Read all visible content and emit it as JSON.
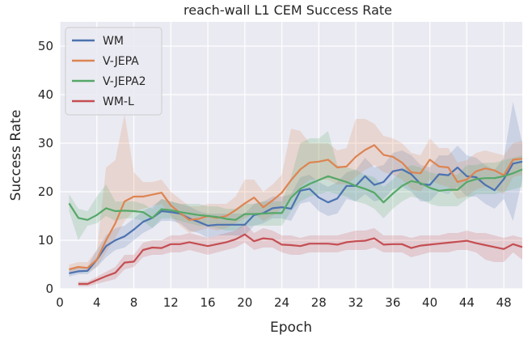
{
  "chart_data": {
    "type": "line",
    "title": "reach-wall L1 CEM Success Rate",
    "xlabel": "Epoch",
    "ylabel": "Success Rate",
    "xlim": [
      0,
      50
    ],
    "ylim": [
      0,
      55
    ],
    "xticks": [
      0,
      4,
      8,
      12,
      16,
      20,
      24,
      28,
      32,
      36,
      40,
      44,
      48
    ],
    "yticks": [
      0,
      10,
      20,
      30,
      40,
      50
    ],
    "grid": true,
    "background": "#eaeaf2",
    "legend_position": "upper-left",
    "series": [
      {
        "name": "WM",
        "color": "#4c72b0",
        "x": [
          1,
          2,
          3,
          4,
          5,
          6,
          7,
          8,
          9,
          10,
          11,
          12,
          13,
          14,
          15,
          16,
          17,
          18,
          19,
          20,
          21,
          22,
          23,
          24,
          25,
          26,
          27,
          28,
          29,
          30,
          31,
          32,
          33,
          34,
          35,
          36,
          37,
          38,
          39,
          40,
          41,
          42,
          43,
          44,
          45,
          46,
          47,
          48,
          49,
          50
        ],
        "values": [
          3.2,
          3.6,
          3.7,
          6.0,
          8.8,
          10.0,
          10.8,
          12.2,
          13.8,
          14.6,
          16.0,
          15.8,
          15.5,
          14.5,
          13.8,
          13.0,
          13.2,
          13.2,
          13.2,
          13.2,
          15.2,
          15.6,
          16.6,
          16.8,
          16.5,
          20.2,
          20.6,
          18.8,
          17.8,
          18.6,
          21.2,
          21.2,
          23.2,
          21.4,
          22.0,
          24.2,
          24.6,
          23.6,
          21.6,
          21.4,
          23.6,
          23.4,
          25.0,
          23.2,
          23.0,
          21.4,
          20.3,
          22.6,
          25.8,
          26.2
        ],
        "band_low": [
          2.5,
          3.0,
          3.0,
          4.5,
          6.5,
          8.0,
          8.5,
          10.0,
          11.5,
          12.5,
          14.0,
          14.0,
          13.5,
          12.0,
          11.5,
          10.5,
          11.0,
          11.0,
          11.0,
          11.0,
          13.0,
          13.5,
          14.5,
          14.5,
          14.0,
          17.5,
          18.0,
          16.0,
          15.0,
          15.5,
          18.5,
          18.0,
          19.5,
          18.0,
          18.5,
          20.5,
          21.0,
          20.0,
          18.0,
          18.0,
          20.0,
          19.5,
          21.0,
          19.0,
          19.0,
          17.5,
          16.5,
          18.5,
          14.0,
          22.5
        ],
        "band_high": [
          4.0,
          4.5,
          4.5,
          8.0,
          11.0,
          12.5,
          13.0,
          14.5,
          16.0,
          17.0,
          18.5,
          18.0,
          17.5,
          17.0,
          16.0,
          15.5,
          15.5,
          15.5,
          15.5,
          15.5,
          17.5,
          18.0,
          19.0,
          19.0,
          19.5,
          23.0,
          23.5,
          22.0,
          21.0,
          22.0,
          24.0,
          24.5,
          27.0,
          25.0,
          25.5,
          28.0,
          28.5,
          27.5,
          25.5,
          25.0,
          27.5,
          27.5,
          29.5,
          27.5,
          27.0,
          25.5,
          24.5,
          27.0,
          38.5,
          30.0
        ]
      },
      {
        "name": "V-JEPA",
        "color": "#dd8452",
        "x": [
          1,
          2,
          3,
          4,
          5,
          6,
          7,
          8,
          9,
          10,
          11,
          12,
          13,
          14,
          15,
          16,
          17,
          18,
          19,
          20,
          21,
          22,
          23,
          24,
          25,
          26,
          27,
          28,
          29,
          30,
          31,
          32,
          33,
          34,
          35,
          36,
          37,
          38,
          39,
          40,
          41,
          42,
          43,
          44,
          45,
          46,
          47,
          48,
          49,
          50
        ],
        "values": [
          4.0,
          4.5,
          4.3,
          6.0,
          10.0,
          13.5,
          18.0,
          19.0,
          19.0,
          19.4,
          19.8,
          17.2,
          15.6,
          14.2,
          14.4,
          15.0,
          14.6,
          15.0,
          16.2,
          17.6,
          18.8,
          16.8,
          18.2,
          19.8,
          22.4,
          24.6,
          26.0,
          26.2,
          26.6,
          25.0,
          25.2,
          27.2,
          28.6,
          29.6,
          27.6,
          27.2,
          26.0,
          24.0,
          23.8,
          26.6,
          25.2,
          25.0,
          22.0,
          22.5,
          24.2,
          24.8,
          24.4,
          23.4,
          26.6,
          26.8
        ],
        "band_low": [
          3.0,
          3.5,
          3.5,
          4.5,
          7.5,
          10.5,
          14.0,
          16.0,
          16.5,
          17.0,
          17.5,
          15.0,
          13.0,
          11.5,
          12.0,
          12.5,
          12.0,
          12.5,
          13.5,
          14.5,
          15.5,
          14.0,
          15.0,
          16.5,
          19.0,
          21.0,
          22.5,
          22.5,
          22.5,
          21.5,
          21.5,
          23.0,
          24.5,
          25.5,
          24.0,
          23.5,
          22.5,
          20.5,
          20.0,
          22.5,
          21.5,
          21.0,
          18.5,
          19.0,
          20.5,
          21.0,
          20.5,
          19.5,
          23.0,
          23.5
        ],
        "band_high": [
          5.0,
          5.5,
          5.5,
          8.0,
          25.0,
          26.5,
          36.0,
          24.0,
          22.0,
          22.0,
          22.5,
          20.0,
          18.5,
          17.0,
          17.0,
          17.5,
          17.5,
          17.5,
          19.0,
          22.5,
          22.5,
          20.0,
          21.5,
          23.5,
          33.0,
          32.5,
          30.0,
          30.0,
          30.0,
          28.5,
          29.0,
          35.0,
          35.0,
          34.0,
          31.5,
          31.0,
          30.0,
          28.0,
          27.5,
          31.0,
          29.0,
          29.0,
          26.0,
          26.5,
          28.0,
          28.5,
          28.0,
          27.5,
          30.0,
          30.5
        ]
      },
      {
        "name": "V-JEPA2",
        "color": "#55a868",
        "x": [
          1,
          2,
          3,
          4,
          5,
          6,
          7,
          8,
          9,
          10,
          11,
          12,
          13,
          14,
          15,
          16,
          17,
          18,
          19,
          20,
          21,
          22,
          23,
          24,
          25,
          26,
          27,
          28,
          29,
          30,
          31,
          32,
          33,
          34,
          35,
          36,
          37,
          38,
          39,
          40,
          41,
          42,
          43,
          44,
          45,
          46,
          47,
          48,
          49,
          50
        ],
        "values": [
          17.6,
          14.6,
          14.2,
          15.2,
          16.6,
          16.0,
          16.1,
          16.0,
          15.8,
          14.6,
          16.4,
          16.2,
          15.8,
          15.5,
          15.2,
          15.0,
          14.8,
          14.4,
          14.2,
          15.4,
          15.4,
          15.5,
          15.6,
          15.6,
          18.8,
          20.6,
          21.6,
          22.4,
          23.2,
          22.6,
          22.0,
          21.2,
          20.6,
          19.8,
          17.8,
          19.6,
          21.2,
          22.2,
          21.8,
          20.8,
          20.2,
          20.4,
          20.4,
          22.0,
          22.6,
          22.8,
          22.8,
          23.2,
          23.8,
          24.6
        ],
        "band_low": [
          16.0,
          10.0,
          13.0,
          13.5,
          15.0,
          14.0,
          14.5,
          14.5,
          14.0,
          12.5,
          14.5,
          14.5,
          14.0,
          13.5,
          13.0,
          13.0,
          12.5,
          12.0,
          12.0,
          13.0,
          13.0,
          13.0,
          13.0,
          13.0,
          16.0,
          18.0,
          19.0,
          19.5,
          20.0,
          19.5,
          19.0,
          18.0,
          17.5,
          16.5,
          14.5,
          16.5,
          18.0,
          19.0,
          18.5,
          17.5,
          17.0,
          17.0,
          17.0,
          18.5,
          19.5,
          19.5,
          19.5,
          20.0,
          20.5,
          21.0
        ],
        "band_high": [
          19.5,
          16.5,
          16.0,
          19.0,
          21.5,
          18.0,
          18.0,
          18.0,
          17.5,
          16.5,
          18.5,
          18.0,
          17.5,
          17.5,
          17.5,
          17.0,
          17.0,
          16.5,
          16.5,
          17.5,
          17.5,
          18.0,
          18.0,
          18.0,
          23.0,
          30.0,
          31.0,
          31.0,
          32.5,
          25.5,
          25.0,
          24.5,
          23.5,
          23.0,
          21.0,
          22.5,
          24.5,
          25.5,
          25.0,
          24.0,
          23.5,
          23.5,
          23.5,
          25.5,
          25.5,
          26.0,
          26.0,
          26.5,
          27.0,
          27.5
        ]
      },
      {
        "name": "WM-L",
        "color": "#c44e52",
        "x": [
          2,
          3,
          4,
          5,
          6,
          7,
          8,
          9,
          10,
          11,
          12,
          13,
          14,
          15,
          16,
          17,
          18,
          19,
          20,
          21,
          22,
          23,
          24,
          25,
          26,
          27,
          28,
          29,
          30,
          31,
          32,
          33,
          34,
          35,
          36,
          37,
          38,
          39,
          40,
          41,
          42,
          43,
          44,
          45,
          46,
          47,
          48,
          49,
          50
        ],
        "values": [
          1.0,
          1.0,
          1.8,
          2.6,
          3.3,
          5.4,
          5.6,
          8.0,
          8.5,
          8.4,
          9.2,
          9.2,
          9.6,
          9.2,
          8.8,
          9.2,
          9.6,
          10.2,
          11.2,
          9.8,
          10.4,
          10.2,
          9.1,
          9.0,
          8.8,
          9.3,
          9.3,
          9.3,
          9.1,
          9.6,
          9.8,
          9.9,
          10.4,
          9.1,
          9.2,
          9.2,
          8.4,
          8.9,
          9.1,
          9.3,
          9.5,
          9.7,
          9.9,
          9.4,
          9.0,
          8.6,
          8.2,
          9.2,
          8.6
        ],
        "band_low": [
          0.5,
          0.5,
          1.0,
          1.5,
          2.0,
          4.0,
          4.5,
          6.5,
          7.0,
          7.0,
          7.5,
          7.5,
          8.0,
          7.5,
          7.0,
          7.5,
          8.0,
          8.5,
          9.5,
          8.0,
          8.5,
          8.5,
          7.5,
          7.0,
          7.0,
          7.5,
          7.5,
          7.5,
          7.5,
          8.0,
          8.0,
          8.0,
          8.5,
          7.5,
          7.5,
          7.5,
          6.5,
          7.0,
          7.5,
          7.5,
          7.5,
          8.0,
          8.0,
          7.5,
          6.0,
          5.5,
          5.5,
          7.5,
          6.0
        ],
        "band_high": [
          1.5,
          1.5,
          2.5,
          3.5,
          4.5,
          7.0,
          7.0,
          9.5,
          10.0,
          10.0,
          11.0,
          11.0,
          11.5,
          11.0,
          10.5,
          11.0,
          11.5,
          12.0,
          13.5,
          11.5,
          12.5,
          12.0,
          11.0,
          11.0,
          10.5,
          11.0,
          11.0,
          11.0,
          11.0,
          11.5,
          12.0,
          12.0,
          12.5,
          11.0,
          11.0,
          11.0,
          10.5,
          11.0,
          11.0,
          11.0,
          11.5,
          11.5,
          12.0,
          11.5,
          11.5,
          11.0,
          10.5,
          11.0,
          10.5
        ]
      }
    ]
  }
}
